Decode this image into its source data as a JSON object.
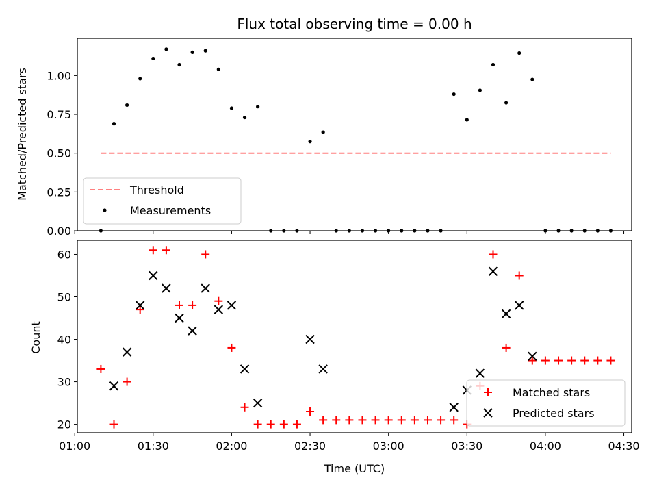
{
  "chart_data": [
    {
      "type": "scatter",
      "panel": "top",
      "title": "Flux total observing time = 0.00 h",
      "xlabel": "",
      "ylabel": "Matched/Predicted stars",
      "xlim": [
        61,
        273
      ],
      "ylim": [
        0.0,
        1.24
      ],
      "x_tick_values": [
        60,
        90,
        120,
        150,
        180,
        210,
        240,
        270
      ],
      "yticks": [
        "0.00",
        "0.25",
        "0.50",
        "0.75",
        "1.00"
      ],
      "legend_position": "lower-left",
      "threshold": {
        "name": "Threshold",
        "value": 0.5,
        "x_range": [
          70,
          265
        ],
        "color": "#ff8080"
      },
      "series": [
        {
          "name": "Measurements",
          "color": "#000000",
          "x": [
            70,
            75,
            80,
            85,
            90,
            95,
            100,
            105,
            110,
            115,
            120,
            125,
            130,
            135,
            140,
            145,
            150,
            155,
            160,
            165,
            170,
            175,
            180,
            185,
            190,
            195,
            200,
            205,
            210,
            215,
            220,
            225,
            230,
            235,
            240,
            245,
            250,
            255,
            260,
            265
          ],
          "y": [
            0.0,
            0.69,
            0.81,
            0.98,
            1.11,
            1.17,
            1.07,
            1.15,
            1.16,
            1.04,
            0.79,
            0.73,
            0.8,
            0.0,
            0.0,
            0.0,
            0.575,
            0.635,
            0.0,
            0.0,
            0.0,
            0.0,
            0.0,
            0.0,
            0.0,
            0.0,
            0.0,
            0.88,
            0.715,
            0.905,
            1.07,
            0.825,
            1.145,
            0.975,
            0.0,
            0.0,
            0.0,
            0.0,
            0.0,
            0.0
          ]
        }
      ]
    },
    {
      "type": "scatter",
      "panel": "bottom",
      "xlabel": "Time (UTC)",
      "ylabel": "Count",
      "xlim": [
        61,
        273
      ],
      "ylim": [
        18,
        63.3
      ],
      "xticks": [
        "01:00",
        "01:30",
        "02:00",
        "02:30",
        "03:00",
        "03:30",
        "04:00",
        "04:30"
      ],
      "x_tick_values": [
        60,
        90,
        120,
        150,
        180,
        210,
        240,
        270
      ],
      "yticks": [
        "20",
        "30",
        "40",
        "50",
        "60"
      ],
      "legend_position": "lower-right",
      "series": [
        {
          "name": "Matched stars",
          "marker": "plus",
          "color": "#ff0000",
          "x": [
            70,
            75,
            80,
            85,
            90,
            95,
            100,
            105,
            110,
            115,
            120,
            125,
            130,
            135,
            140,
            145,
            150,
            155,
            160,
            165,
            170,
            175,
            180,
            185,
            190,
            195,
            200,
            205,
            210,
            215,
            220,
            225,
            230,
            235,
            240,
            245,
            250,
            255,
            260,
            265
          ],
          "y": [
            33,
            20,
            30,
            47,
            61,
            61,
            48,
            48,
            60,
            49,
            38,
            24,
            20,
            20,
            20,
            20,
            23,
            21,
            21,
            21,
            21,
            21,
            21,
            21,
            21,
            21,
            21,
            21,
            20,
            29,
            60,
            38,
            55,
            35,
            35,
            35,
            35,
            35,
            35,
            35
          ]
        },
        {
          "name": "Predicted stars",
          "marker": "x",
          "color": "#000000",
          "x": [
            75,
            80,
            85,
            90,
            95,
            100,
            105,
            110,
            115,
            120,
            125,
            130,
            150,
            155,
            205,
            210,
            215,
            220,
            225,
            230,
            235
          ],
          "y": [
            29,
            37,
            48,
            55,
            52,
            45,
            42,
            52,
            47,
            48,
            33,
            25,
            40,
            33,
            24,
            28,
            32,
            56,
            46,
            48,
            36
          ]
        }
      ]
    }
  ]
}
